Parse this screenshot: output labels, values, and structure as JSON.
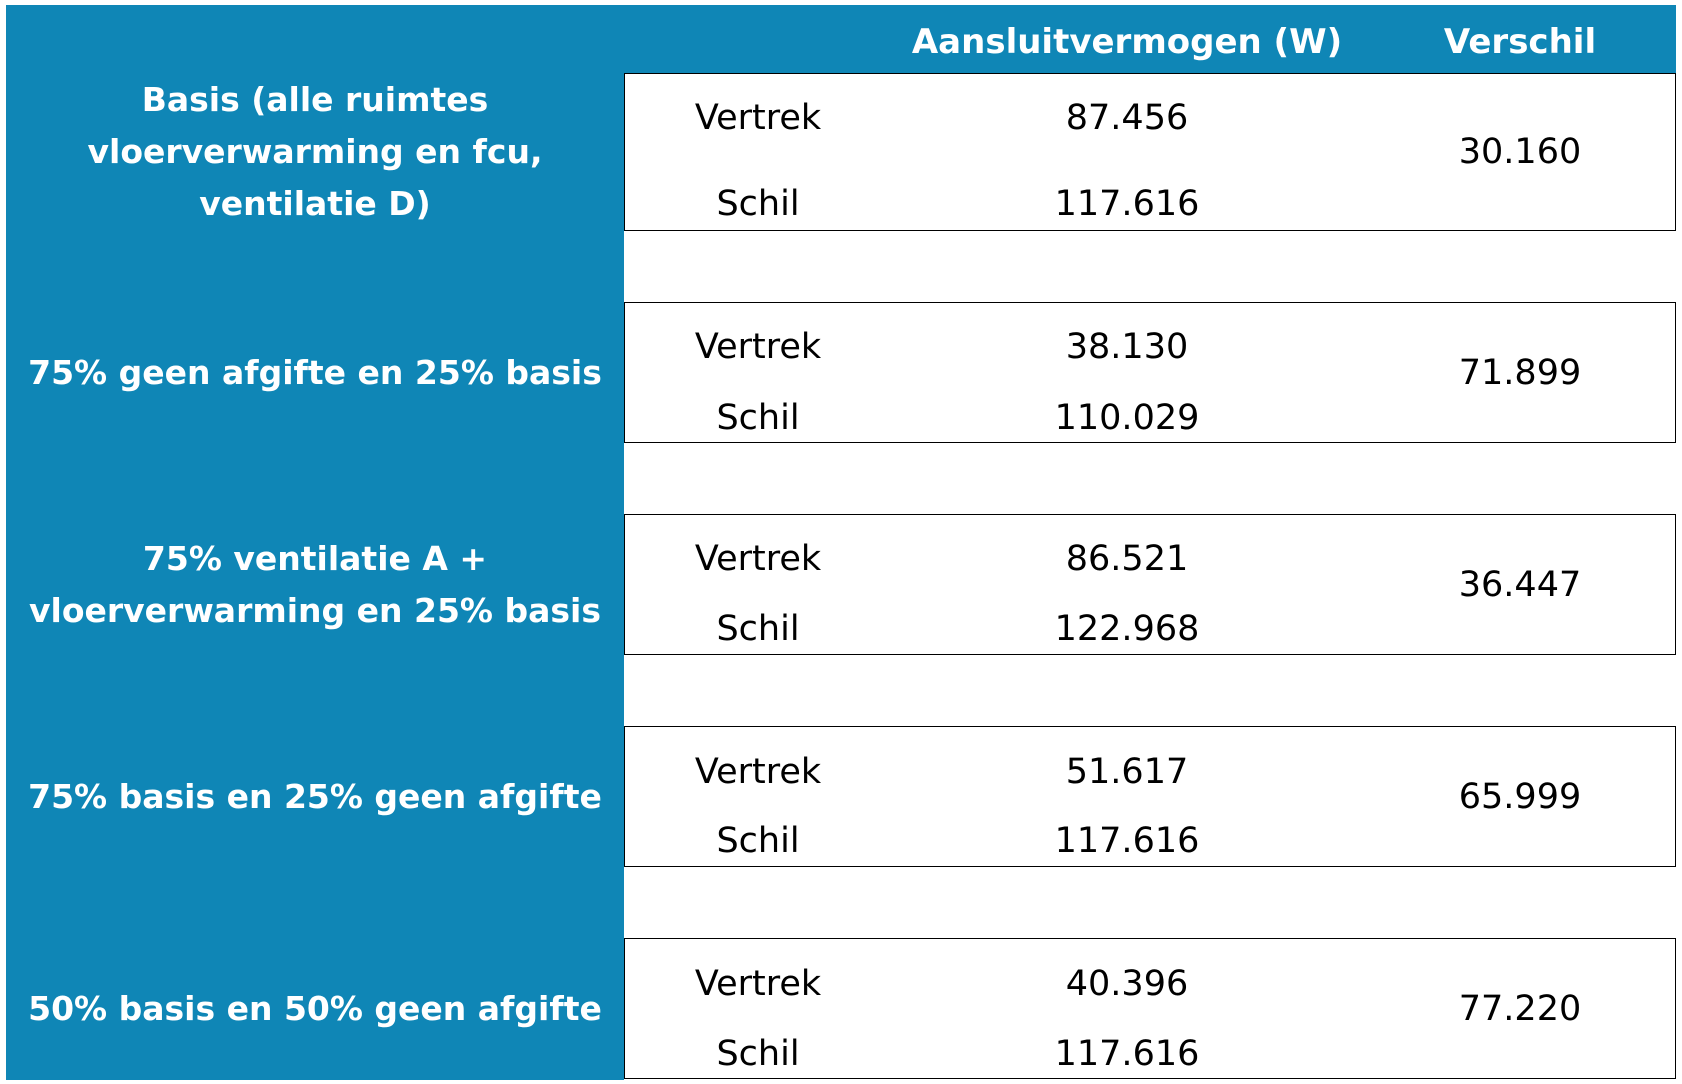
{
  "columns": {
    "power": "Aansluitvermogen (W)",
    "difference": "Verschil"
  },
  "rows": [
    {
      "scenario": "Basis (alle ruimtes vloerverwarming en fcu, ventilatie D)",
      "scenario_lines": [
        "Basis (alle ruimtes",
        "vloerverwarming en fcu,",
        "ventilatie D)"
      ],
      "vertrek_label": "Vertrek",
      "vertrek_value": "87.456",
      "schil_label": "Schil",
      "schil_value": "117.616",
      "verschil": "30.160"
    },
    {
      "scenario": "75% geen afgifte en 25% basis",
      "scenario_lines": [
        "75% geen afgifte en 25% basis"
      ],
      "vertrek_label": "Vertrek",
      "vertrek_value": "38.130",
      "schil_label": "Schil",
      "schil_value": "110.029",
      "verschil": "71.899"
    },
    {
      "scenario": "75% ventilatie A + vloerverwarming en 25% basis",
      "scenario_lines": [
        "75% ventilatie A +",
        "vloerverwarming en 25% basis"
      ],
      "vertrek_label": "Vertrek",
      "vertrek_value": "86.521",
      "schil_label": "Schil",
      "schil_value": "122.968",
      "verschil": "36.447"
    },
    {
      "scenario": "75% basis en 25% geen afgifte",
      "scenario_lines": [
        "75% basis en 25% geen afgifte"
      ],
      "vertrek_label": "Vertrek",
      "vertrek_value": "51.617",
      "schil_label": "Schil",
      "schil_value": "117.616",
      "verschil": "65.999"
    },
    {
      "scenario": "50% basis en 50% geen afgifte",
      "scenario_lines": [
        "50% basis en 50% geen afgifte"
      ],
      "vertrek_label": "Vertrek",
      "vertrek_value": "40.396",
      "schil_label": "Schil",
      "schil_value": "117.616",
      "verschil": "77.220"
    }
  ],
  "colors": {
    "header_blue": "#0f86b6",
    "header_text": "#ffffff",
    "cell_text": "#000000"
  }
}
